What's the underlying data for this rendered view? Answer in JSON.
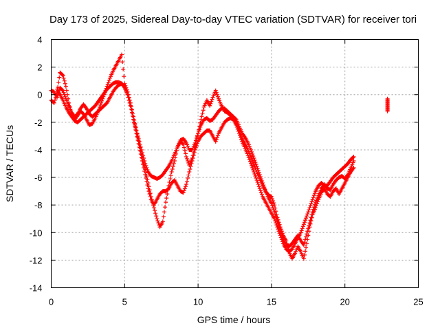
{
  "chart_data": {
    "type": "scatter",
    "title": "Day 173 of 2025, Sidereal Day-to-day VTEC variation (SDTVAR) for receiver tori",
    "xlabel": "GPS time / hours",
    "ylabel": "SDTVAR / TECUs",
    "xlim": [
      0,
      25
    ],
    "ylim": [
      -14,
      4
    ],
    "xticks": [
      "0",
      "5",
      "10",
      "15",
      "20",
      "25"
    ],
    "yticks": [
      "4",
      "2",
      "0",
      "-2",
      "-4",
      "-6",
      "-8",
      "-10",
      "-12",
      "-14"
    ],
    "grid": true,
    "marker": "plus",
    "color": "#ff0000",
    "series": [
      {
        "values": [
          [
            0.0,
            -0.4
          ],
          [
            0.2,
            -0.6
          ],
          [
            0.4,
            0.2
          ],
          [
            0.6,
            1.6
          ],
          [
            0.8,
            1.4
          ],
          [
            1.0,
            0.6
          ],
          [
            1.2,
            -0.6
          ],
          [
            1.4,
            -1.6
          ],
          [
            1.6,
            -1.8
          ],
          [
            1.8,
            -1.5
          ],
          [
            2.0,
            -1.2
          ],
          [
            2.2,
            -1.4
          ],
          [
            2.4,
            -1.8
          ],
          [
            2.6,
            -2.2
          ],
          [
            2.8,
            -2.1
          ],
          [
            3.0,
            -1.7
          ],
          [
            3.2,
            -1.2
          ],
          [
            3.4,
            -0.6
          ],
          [
            3.6,
            0.0
          ],
          [
            3.8,
            0.6
          ],
          [
            4.0,
            1.2
          ],
          [
            4.2,
            1.7
          ],
          [
            4.4,
            2.1
          ],
          [
            4.6,
            2.5
          ],
          [
            4.8,
            2.9
          ],
          [
            5.0,
            0.8
          ],
          [
            5.2,
            0.2
          ],
          [
            5.4,
            -0.6
          ],
          [
            5.6,
            -1.6
          ],
          [
            5.8,
            -2.6
          ],
          [
            6.0,
            -3.6
          ],
          [
            6.2,
            -4.6
          ],
          [
            6.4,
            -5.4
          ],
          [
            6.6,
            -6.4
          ],
          [
            6.8,
            -7.4
          ],
          [
            7.0,
            -8.2
          ],
          [
            7.2,
            -9.0
          ],
          [
            7.4,
            -9.6
          ],
          [
            7.6,
            -9.2
          ],
          [
            7.8,
            -7.8
          ],
          [
            8.0,
            -6.6
          ],
          [
            8.2,
            -5.6
          ],
          [
            8.4,
            -4.8
          ],
          [
            8.6,
            -3.8
          ],
          [
            8.8,
            -3.4
          ],
          [
            9.0,
            -3.6
          ],
          [
            9.2,
            -4.5
          ],
          [
            9.4,
            -5.1
          ],
          [
            9.6,
            -4.6
          ],
          [
            9.8,
            -3.8
          ],
          [
            10.0,
            -2.8
          ],
          [
            10.2,
            -1.8
          ],
          [
            10.4,
            -0.9
          ],
          [
            10.6,
            -0.4
          ],
          [
            10.8,
            -0.8
          ],
          [
            11.0,
            -0.2
          ],
          [
            11.2,
            0.3
          ],
          [
            11.4,
            -0.3
          ],
          [
            11.6,
            -0.8
          ],
          [
            11.8,
            -1.2
          ],
          [
            12.0,
            -1.3
          ],
          [
            12.2,
            -1.5
          ],
          [
            12.4,
            -1.6
          ],
          [
            12.6,
            -1.8
          ],
          [
            12.8,
            -2.3
          ],
          [
            13.0,
            -2.8
          ],
          [
            13.2,
            -3.1
          ],
          [
            13.4,
            -3.5
          ],
          [
            13.6,
            -4.0
          ],
          [
            13.8,
            -4.6
          ],
          [
            14.0,
            -5.2
          ],
          [
            14.2,
            -5.8
          ],
          [
            14.4,
            -6.4
          ],
          [
            14.6,
            -7.0
          ],
          [
            14.8,
            -7.5
          ],
          [
            15.0,
            -7.9
          ],
          [
            15.2,
            -8.5
          ],
          [
            15.4,
            -9.2
          ],
          [
            15.6,
            -9.9
          ],
          [
            15.8,
            -10.5
          ],
          [
            16.0,
            -10.9
          ],
          [
            16.2,
            -11.0
          ],
          [
            16.4,
            -10.8
          ],
          [
            16.6,
            -10.5
          ],
          [
            16.8,
            -10.2
          ],
          [
            17.0,
            -10.6
          ],
          [
            17.2,
            -10.9
          ],
          [
            17.4,
            -10.1
          ],
          [
            17.6,
            -9.3
          ],
          [
            17.8,
            -8.5
          ],
          [
            18.0,
            -7.8
          ],
          [
            18.2,
            -7.3
          ],
          [
            18.4,
            -6.8
          ],
          [
            18.6,
            -6.5
          ],
          [
            18.8,
            -6.8
          ],
          [
            19.0,
            -6.9
          ],
          [
            19.2,
            -6.5
          ],
          [
            19.4,
            -6.2
          ],
          [
            19.6,
            -6.0
          ],
          [
            19.8,
            -5.9
          ],
          [
            20.0,
            -6.1
          ],
          [
            20.2,
            -5.8
          ],
          [
            20.4,
            -5.3
          ],
          [
            20.6,
            -4.8
          ]
        ]
      },
      {
        "values": [
          [
            0.0,
            0.3
          ],
          [
            0.2,
            0.2
          ],
          [
            0.4,
            -0.2
          ],
          [
            0.6,
            0.5
          ],
          [
            0.8,
            0.3
          ],
          [
            1.0,
            -0.3
          ],
          [
            1.2,
            -0.8
          ],
          [
            1.4,
            -1.3
          ],
          [
            1.6,
            -1.6
          ],
          [
            1.8,
            -1.4
          ],
          [
            2.0,
            -1.0
          ],
          [
            2.2,
            -0.7
          ],
          [
            2.4,
            -1.0
          ],
          [
            2.6,
            -1.4
          ],
          [
            2.8,
            -1.6
          ],
          [
            3.0,
            -1.4
          ],
          [
            3.2,
            -1.2
          ],
          [
            3.4,
            -1.0
          ],
          [
            3.6,
            -0.8
          ],
          [
            3.8,
            -0.6
          ],
          [
            4.0,
            -0.2
          ],
          [
            4.2,
            0.2
          ],
          [
            4.4,
            0.5
          ],
          [
            4.6,
            0.7
          ],
          [
            4.8,
            0.8
          ],
          [
            5.0,
            0.6
          ],
          [
            5.2,
            0.0
          ],
          [
            5.4,
            -0.8
          ],
          [
            5.6,
            -1.8
          ],
          [
            5.8,
            -2.6
          ],
          [
            6.0,
            -3.4
          ],
          [
            6.2,
            -4.2
          ],
          [
            6.4,
            -5.0
          ],
          [
            6.6,
            -5.6
          ],
          [
            6.8,
            -5.9
          ],
          [
            7.0,
            -6.0
          ],
          [
            7.2,
            -6.1
          ],
          [
            7.4,
            -6.0
          ],
          [
            7.6,
            -5.8
          ],
          [
            7.8,
            -5.5
          ],
          [
            8.0,
            -5.2
          ],
          [
            8.2,
            -4.8
          ],
          [
            8.4,
            -4.3
          ],
          [
            8.6,
            -3.8
          ],
          [
            8.8,
            -3.3
          ],
          [
            9.0,
            -3.2
          ],
          [
            9.2,
            -3.5
          ],
          [
            9.4,
            -4.0
          ],
          [
            9.6,
            -4.0
          ],
          [
            9.8,
            -3.5
          ],
          [
            10.0,
            -2.8
          ],
          [
            10.2,
            -2.2
          ],
          [
            10.4,
            -1.8
          ],
          [
            10.6,
            -1.7
          ],
          [
            10.8,
            -1.9
          ],
          [
            11.0,
            -1.8
          ],
          [
            11.2,
            -1.5
          ],
          [
            11.4,
            -1.2
          ],
          [
            11.6,
            -1.0
          ],
          [
            11.8,
            -1.0
          ],
          [
            12.0,
            -1.2
          ],
          [
            12.2,
            -1.4
          ],
          [
            12.4,
            -1.6
          ],
          [
            12.6,
            -2.0
          ],
          [
            12.8,
            -2.6
          ],
          [
            13.0,
            -3.2
          ],
          [
            13.2,
            -3.6
          ],
          [
            13.4,
            -4.0
          ],
          [
            13.6,
            -4.5
          ],
          [
            13.8,
            -5.1
          ],
          [
            14.0,
            -5.6
          ],
          [
            14.2,
            -6.1
          ],
          [
            14.4,
            -6.6
          ],
          [
            14.6,
            -7.0
          ],
          [
            14.8,
            -7.3
          ],
          [
            15.0,
            -7.4
          ],
          [
            15.2,
            -8.0
          ],
          [
            15.4,
            -8.9
          ],
          [
            15.6,
            -9.6
          ],
          [
            15.8,
            -10.2
          ],
          [
            16.0,
            -10.6
          ],
          [
            16.2,
            -11.4
          ],
          [
            16.4,
            -11.9
          ],
          [
            16.6,
            -11.5
          ],
          [
            16.8,
            -11.0
          ],
          [
            17.0,
            -11.4
          ],
          [
            17.2,
            -11.9
          ],
          [
            17.4,
            -10.8
          ],
          [
            17.6,
            -9.6
          ],
          [
            17.8,
            -8.7
          ],
          [
            18.0,
            -8.2
          ],
          [
            18.2,
            -7.6
          ],
          [
            18.4,
            -7.1
          ],
          [
            18.6,
            -6.8
          ],
          [
            18.8,
            -7.2
          ],
          [
            19.0,
            -7.4
          ],
          [
            19.2,
            -7.0
          ],
          [
            19.4,
            -6.8
          ],
          [
            19.6,
            -7.2
          ],
          [
            19.8,
            -6.8
          ],
          [
            20.0,
            -6.4
          ],
          [
            20.2,
            -6.0
          ],
          [
            20.4,
            -5.6
          ],
          [
            20.6,
            -5.3
          ]
        ]
      },
      {
        "values": [
          [
            0.4,
            0.4
          ],
          [
            0.6,
            0.0
          ],
          [
            0.8,
            -0.4
          ],
          [
            1.0,
            -0.9
          ],
          [
            1.2,
            -1.3
          ],
          [
            1.4,
            -1.6
          ],
          [
            1.6,
            -1.9
          ],
          [
            1.8,
            -2.0
          ],
          [
            2.0,
            -1.8
          ],
          [
            2.2,
            -1.6
          ],
          [
            2.4,
            -1.4
          ],
          [
            2.6,
            -1.2
          ],
          [
            2.8,
            -1.0
          ],
          [
            3.0,
            -0.8
          ],
          [
            3.2,
            -0.5
          ],
          [
            3.4,
            -0.2
          ],
          [
            3.6,
            0.1
          ],
          [
            3.8,
            0.4
          ],
          [
            4.0,
            0.6
          ],
          [
            4.2,
            0.8
          ],
          [
            4.4,
            0.9
          ],
          [
            4.6,
            0.9
          ],
          [
            4.8,
            0.8
          ],
          [
            5.0,
            0.5
          ],
          [
            5.2,
            0.0
          ],
          [
            5.4,
            -0.8
          ],
          [
            5.6,
            -1.8
          ],
          [
            5.8,
            -2.8
          ],
          [
            6.0,
            -3.8
          ],
          [
            6.2,
            -4.8
          ],
          [
            6.4,
            -5.8
          ],
          [
            6.6,
            -6.8
          ],
          [
            6.8,
            -7.6
          ],
          [
            7.0,
            -8.0
          ],
          [
            7.2,
            -7.6
          ],
          [
            7.4,
            -7.2
          ],
          [
            7.6,
            -7.0
          ],
          [
            7.8,
            -7.0
          ],
          [
            8.0,
            -6.8
          ],
          [
            8.2,
            -6.4
          ],
          [
            8.4,
            -6.2
          ],
          [
            8.6,
            -6.6
          ],
          [
            8.8,
            -7.0
          ],
          [
            9.0,
            -7.1
          ],
          [
            9.2,
            -6.5
          ],
          [
            9.4,
            -5.6
          ],
          [
            9.6,
            -4.8
          ],
          [
            9.8,
            -4.0
          ],
          [
            10.0,
            -3.4
          ],
          [
            10.2,
            -3.0
          ],
          [
            10.4,
            -2.8
          ],
          [
            10.6,
            -2.6
          ],
          [
            10.8,
            -2.6
          ],
          [
            11.0,
            -3.0
          ],
          [
            11.2,
            -3.4
          ],
          [
            11.4,
            -2.8
          ],
          [
            11.6,
            -2.4
          ],
          [
            11.8,
            -2.0
          ],
          [
            12.0,
            -1.8
          ],
          [
            12.2,
            -1.7
          ],
          [
            12.4,
            -1.8
          ],
          [
            12.6,
            -2.2
          ],
          [
            12.8,
            -2.8
          ],
          [
            13.0,
            -3.4
          ],
          [
            13.2,
            -3.9
          ],
          [
            13.4,
            -4.4
          ],
          [
            13.6,
            -5.0
          ],
          [
            13.8,
            -5.6
          ],
          [
            14.0,
            -6.2
          ],
          [
            14.2,
            -6.8
          ],
          [
            14.4,
            -7.4
          ],
          [
            14.6,
            -7.8
          ],
          [
            14.8,
            -8.2
          ],
          [
            15.0,
            -8.6
          ],
          [
            15.2,
            -9.0
          ],
          [
            15.4,
            -9.6
          ],
          [
            15.6,
            -10.2
          ],
          [
            15.8,
            -10.8
          ],
          [
            16.0,
            -11.2
          ],
          [
            16.2,
            -11.4
          ],
          [
            16.4,
            -11.2
          ],
          [
            16.6,
            -10.8
          ],
          [
            16.8,
            -10.4
          ],
          [
            17.0,
            -10.0
          ],
          [
            17.2,
            -9.4
          ],
          [
            17.4,
            -8.8
          ],
          [
            17.6,
            -8.2
          ],
          [
            17.8,
            -7.6
          ],
          [
            18.0,
            -7.0
          ],
          [
            18.2,
            -6.6
          ],
          [
            18.4,
            -6.4
          ],
          [
            18.6,
            -6.6
          ],
          [
            18.8,
            -6.6
          ],
          [
            19.0,
            -6.3
          ],
          [
            19.2,
            -6.0
          ],
          [
            19.4,
            -5.8
          ],
          [
            19.6,
            -5.6
          ],
          [
            19.8,
            -5.4
          ],
          [
            20.0,
            -5.2
          ],
          [
            20.2,
            -5.0
          ],
          [
            20.4,
            -4.7
          ],
          [
            20.6,
            -4.5
          ]
        ]
      },
      {
        "values": [
          [
            22.9,
            -0.3
          ],
          [
            22.9,
            -0.6
          ],
          [
            22.9,
            -0.9
          ],
          [
            22.9,
            -1.2
          ]
        ]
      }
    ]
  }
}
